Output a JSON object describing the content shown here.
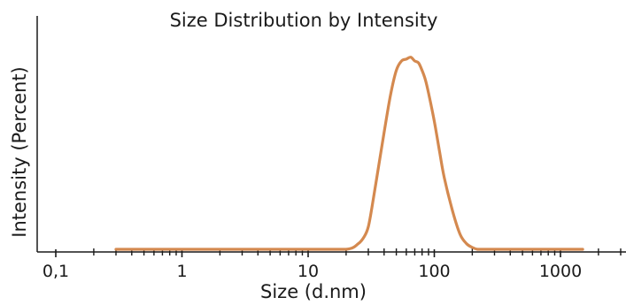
{
  "chart_data": {
    "type": "line",
    "title": "Size Distribution by Intensity",
    "xlabel": "Size (d.nm)",
    "ylabel": "Intensity (Percent)",
    "x_scale": "log",
    "xlim": [
      0.07,
      3500
    ],
    "ylim": [
      0,
      1
    ],
    "grid": false,
    "legend": "none",
    "tick_labels": [
      "0,1",
      "1",
      "10",
      "100",
      "1000"
    ],
    "tick_values": [
      0.1,
      1,
      10,
      100,
      1000
    ],
    "line_color": "#d4894f",
    "axis_color": "#1a1a1a",
    "series": [
      {
        "x": [
          0.3,
          1,
          5,
          10,
          20,
          25,
          28,
          30,
          32,
          35,
          40,
          45,
          50,
          55,
          60,
          65,
          70,
          75,
          80,
          85,
          90,
          100,
          110,
          120,
          140,
          160,
          180,
          200,
          220,
          250,
          500,
          1000,
          1500
        ],
        "values": [
          0,
          0,
          0,
          0,
          0,
          0.03,
          0.07,
          0.12,
          0.22,
          0.38,
          0.62,
          0.82,
          0.95,
          1.0,
          1.01,
          1.02,
          1.0,
          0.99,
          0.95,
          0.9,
          0.83,
          0.68,
          0.52,
          0.38,
          0.2,
          0.08,
          0.03,
          0.01,
          0,
          0,
          0,
          0,
          0
        ]
      }
    ]
  }
}
